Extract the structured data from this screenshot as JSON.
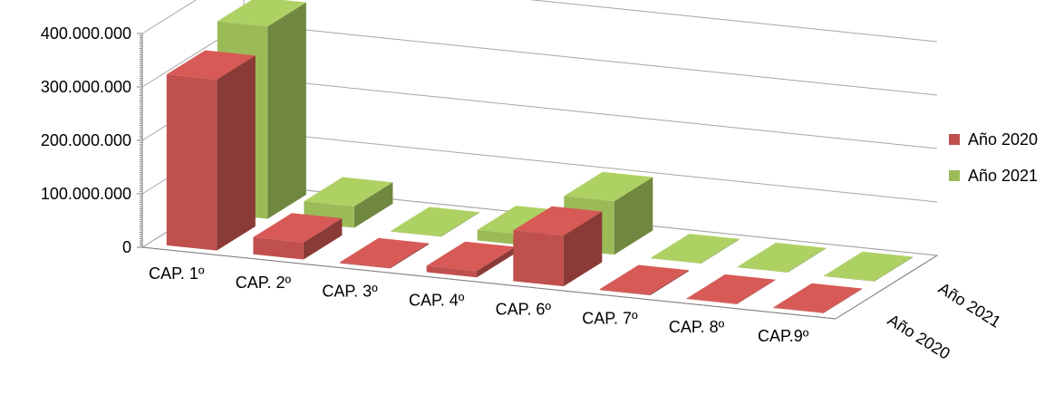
{
  "chart_data": {
    "type": "bar",
    "style": "3d-clustered-column",
    "categories": [
      "CAP. 1º",
      "CAP. 2º",
      "CAP. 3º",
      "CAP. 4º",
      "CAP. 6º",
      "CAP. 7º",
      "CAP. 8º",
      "CAP.9º"
    ],
    "series": [
      {
        "name": "Año 2020",
        "color": "#c0504d",
        "values": [
          320000000,
          32000000,
          2000000,
          12000000,
          95000000,
          2000000,
          1000000,
          1000000
        ]
      },
      {
        "name": "Año 2021",
        "color": "#9bbb59",
        "values": [
          360000000,
          40000000,
          1000000,
          20000000,
          100000000,
          1000000,
          1000000,
          1000000
        ]
      }
    ],
    "y_ticks": [
      "0",
      "100.000.000",
      "200.000.000",
      "300.000.000",
      "400.000.000"
    ],
    "depth_labels": [
      "Año 2020",
      "Año 2021"
    ],
    "ylim": [
      0,
      400000000
    ],
    "legend_position": "right",
    "grid": true
  }
}
